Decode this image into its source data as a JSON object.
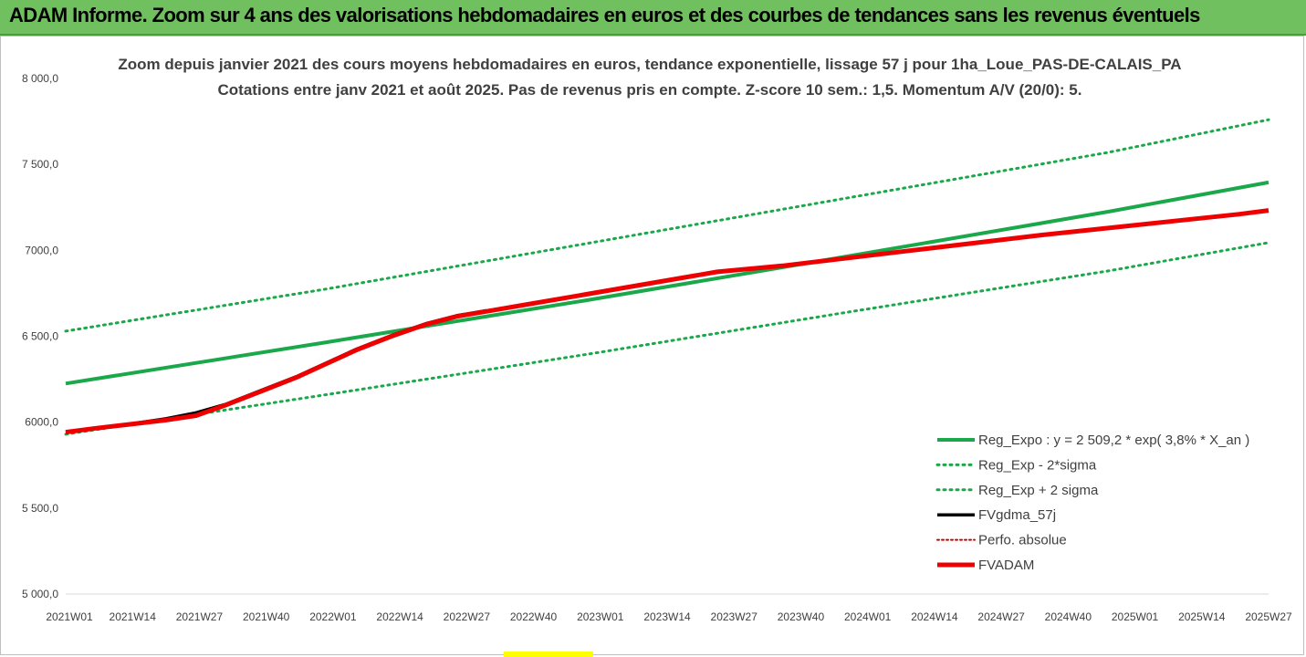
{
  "header": {
    "banner_title": "ADAM Informe. Zoom sur 4 ans des valorisations hebdomadaires en euros et des courbes de tendances sans les revenus éventuels"
  },
  "colors": {
    "banner_bg": "#70c060",
    "reg_expo": "#1aa84a",
    "sigma_lines": "#1aa84a",
    "fvgdma": "#000000",
    "perfo": "#cc0000",
    "fvadam": "#ee0000"
  },
  "chart_data": {
    "type": "line",
    "title": "Zoom depuis janvier 2021 des cours moyens hebdomadaires en euros, tendance exponentielle, lissage 57 j pour 1ha_Loue_PAS-DE-CALAIS_PA",
    "subtitle": "Cotations entre janv 2021 et août 2025.  Pas de revenus pris en compte. Z-score 10 sem.: 1,5. Momentum A/V (20/0): 5.",
    "xlabel": "",
    "ylabel": "",
    "ylim": [
      5000,
      8000
    ],
    "y_ticks": [
      "5 000,0",
      "5 500,0",
      "6000,0",
      "6 500,0",
      "7000,0",
      "7 500,0",
      "8 000,0"
    ],
    "y_tick_values": [
      5000,
      5500,
      6000,
      6500,
      7000,
      7500,
      8000
    ],
    "x_ticks": [
      "2021W01",
      "2021W14",
      "2021W27",
      "2021W40",
      "2022W01",
      "2022W14",
      "2022W27",
      "2022W40",
      "2023W01",
      "2023W14",
      "2023W27",
      "2023W40",
      "2024W01",
      "2024W14",
      "2024W27",
      "2024W40",
      "2025W01",
      "2025W14",
      "2025W27"
    ],
    "x_range_weeks": [
      0,
      240
    ],
    "legend_position": "bottom-right",
    "grid": false,
    "series": [
      {
        "name": "Reg_Expo : y = 2 509,2 * exp( 3,8% *  X_an )",
        "style": "solid-thick",
        "points": [
          [
            0,
            6225
          ],
          [
            52,
            6465
          ],
          [
            104,
            6710
          ],
          [
            156,
            6965
          ],
          [
            208,
            7225
          ],
          [
            240,
            7395
          ]
        ]
      },
      {
        "name": "Reg_Exp - 2*sigma",
        "style": "dotted",
        "points": [
          [
            0,
            5930
          ],
          [
            52,
            6160
          ],
          [
            104,
            6395
          ],
          [
            156,
            6640
          ],
          [
            208,
            6880
          ],
          [
            240,
            7045
          ]
        ]
      },
      {
        "name": "Reg_Exp + 2 sigma",
        "style": "dotted",
        "points": [
          [
            0,
            6530
          ],
          [
            52,
            6775
          ],
          [
            104,
            7040
          ],
          [
            156,
            7305
          ],
          [
            208,
            7570
          ],
          [
            240,
            7760
          ]
        ]
      },
      {
        "name": "FVgdma_57j",
        "style": "solid-black",
        "points": [
          [
            0,
            5942
          ],
          [
            6,
            5965
          ],
          [
            13,
            5990
          ],
          [
            20,
            6020
          ],
          [
            26,
            6055
          ],
          [
            32,
            6105
          ],
          [
            39,
            6185
          ],
          [
            46,
            6265
          ],
          [
            52,
            6345
          ],
          [
            58,
            6425
          ],
          [
            65,
            6505
          ],
          [
            72,
            6575
          ],
          [
            78,
            6620
          ],
          [
            84,
            6650
          ]
        ]
      },
      {
        "name": "Perfo. absolue",
        "style": "dotted-red",
        "points": []
      },
      {
        "name": "FVADAM",
        "style": "solid-red-thick",
        "points": [
          [
            0,
            5942
          ],
          [
            6,
            5965
          ],
          [
            13,
            5988
          ],
          [
            20,
            6012
          ],
          [
            26,
            6038
          ],
          [
            32,
            6100
          ],
          [
            39,
            6180
          ],
          [
            46,
            6260
          ],
          [
            52,
            6340
          ],
          [
            58,
            6420
          ],
          [
            65,
            6500
          ],
          [
            72,
            6570
          ],
          [
            78,
            6615
          ],
          [
            84,
            6645
          ],
          [
            91,
            6680
          ],
          [
            104,
            6745
          ],
          [
            117,
            6810
          ],
          [
            130,
            6875
          ],
          [
            143,
            6910
          ],
          [
            156,
            6955
          ],
          [
            169,
            7000
          ],
          [
            182,
            7045
          ],
          [
            195,
            7090
          ],
          [
            208,
            7130
          ],
          [
            221,
            7170
          ],
          [
            234,
            7210
          ],
          [
            240,
            7232
          ]
        ]
      }
    ]
  }
}
